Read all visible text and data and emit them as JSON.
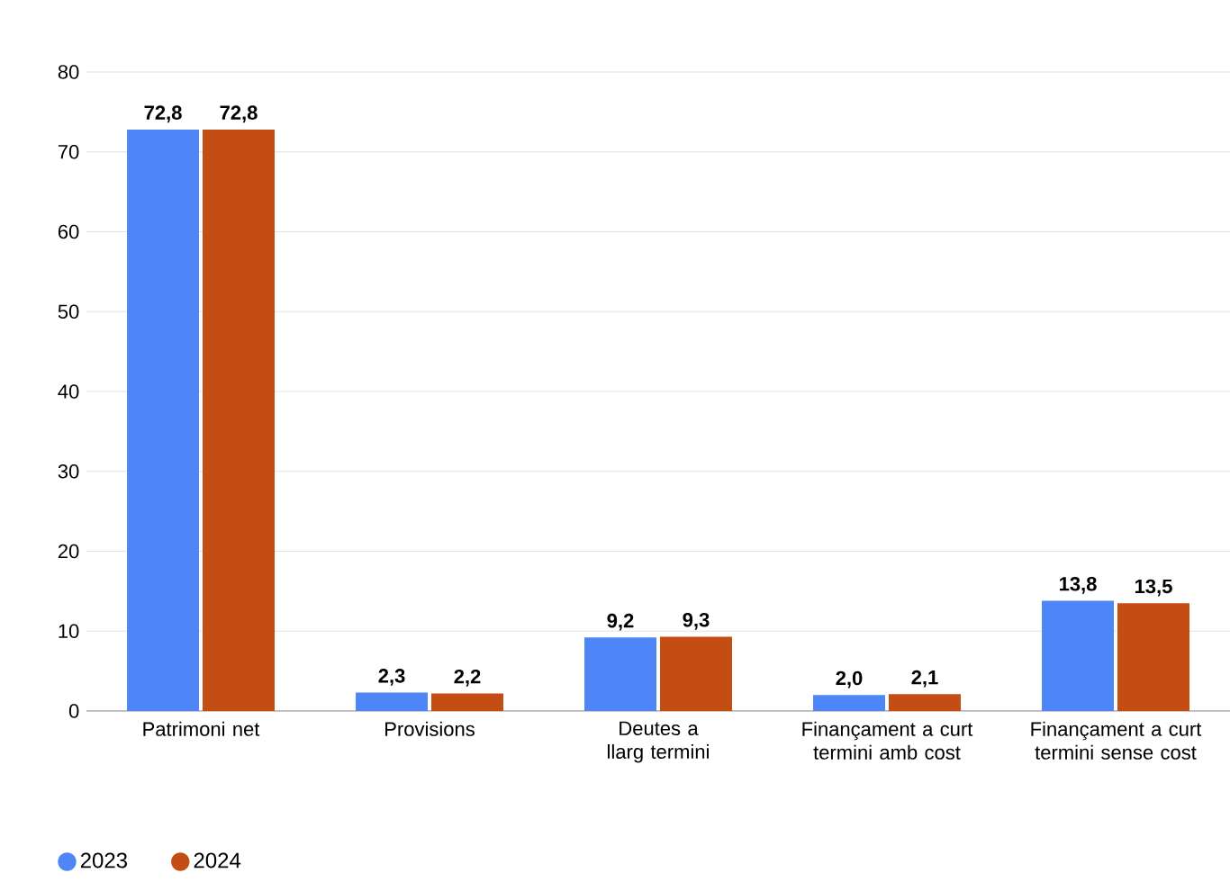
{
  "chart_data": {
    "type": "bar",
    "categories": [
      "Patrimoni net",
      "Provisions",
      "Deutes a llarg termini",
      "Finançament a curt termini amb cost",
      "Finançament a curt termini sense cost"
    ],
    "series": [
      {
        "name": "2023",
        "color": "#4f86f7",
        "values": [
          72.8,
          2.3,
          9.2,
          2.0,
          13.8
        ],
        "value_labels": [
          "72,8",
          "2,3",
          "9,2",
          "2,0",
          "13,8"
        ]
      },
      {
        "name": "2024",
        "color": "#c44d14",
        "values": [
          72.8,
          2.2,
          9.3,
          2.1,
          13.5
        ],
        "value_labels": [
          "72,8",
          "2,2",
          "9,3",
          "2,1",
          "13,5"
        ]
      }
    ],
    "ylim": [
      0,
      80
    ],
    "yticks": [
      0,
      10,
      20,
      30,
      40,
      50,
      60,
      70,
      80
    ],
    "grid": "y",
    "legend": "bottom left",
    "marker": "circle"
  }
}
